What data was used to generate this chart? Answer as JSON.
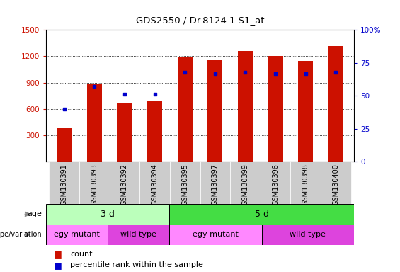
{
  "title": "GDS2550 / Dr.8124.1.S1_at",
  "samples": [
    "GSM130391",
    "GSM130393",
    "GSM130392",
    "GSM130394",
    "GSM130395",
    "GSM130397",
    "GSM130399",
    "GSM130396",
    "GSM130398",
    "GSM130400"
  ],
  "counts": [
    390,
    880,
    670,
    700,
    1185,
    1155,
    1260,
    1205,
    1150,
    1320
  ],
  "percentile_ranks": [
    40,
    57,
    51,
    51,
    68,
    67,
    68,
    67,
    67,
    68
  ],
  "ylim_left": [
    0,
    1500
  ],
  "ylim_right": [
    0,
    100
  ],
  "yticks_left": [
    300,
    600,
    900,
    1200,
    1500
  ],
  "yticks_right": [
    0,
    25,
    50,
    75,
    100
  ],
  "bar_color": "#cc1100",
  "dot_color": "#0000cc",
  "age_3d_color": "#bbffbb",
  "age_5d_color": "#44dd44",
  "geno_mutant_color": "#ff88ff",
  "geno_wildtype_color": "#dd44dd",
  "xtick_bg_color": "#cccccc",
  "background_color": "#ffffff",
  "tick_label_color_left": "#cc1100",
  "tick_label_color_right": "#0000cc",
  "bar_width": 0.5
}
